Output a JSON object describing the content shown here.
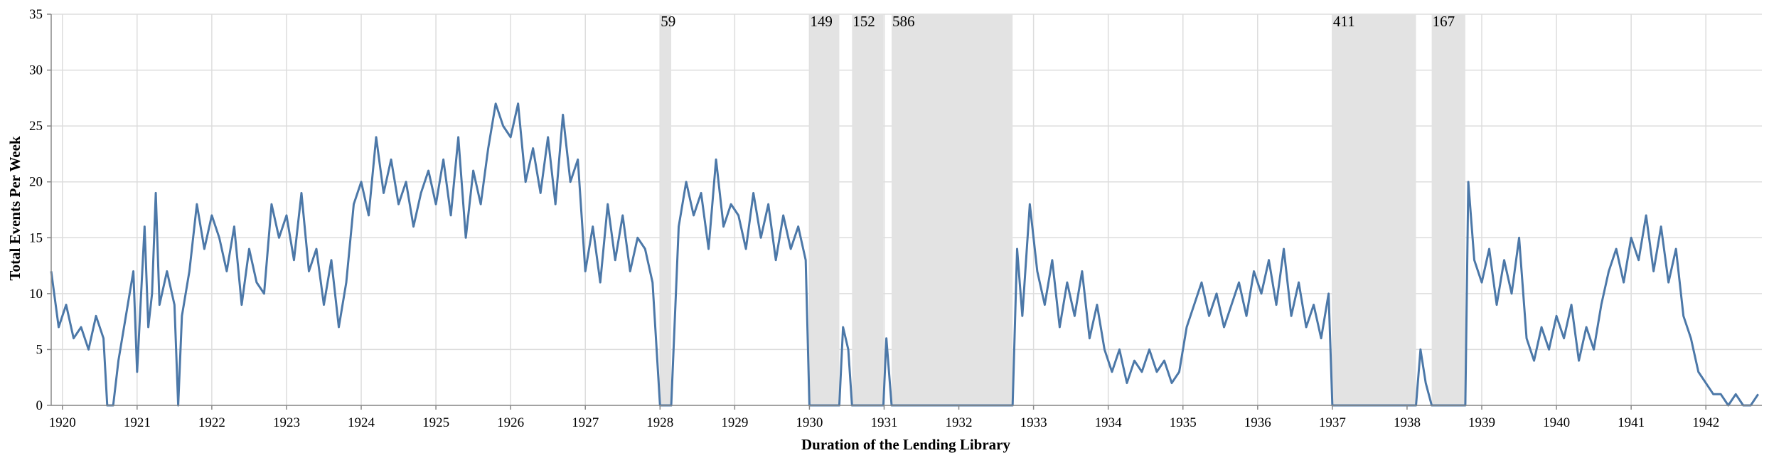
{
  "chart_data": {
    "type": "line",
    "title": "",
    "xlabel": "Duration of the Lending Library",
    "ylabel": "Total Events Per Week",
    "xlim": [
      1919.85,
      1942.75
    ],
    "ylim": [
      0,
      35
    ],
    "x_ticks": [
      1920,
      1921,
      1922,
      1923,
      1924,
      1925,
      1926,
      1927,
      1928,
      1929,
      1930,
      1931,
      1932,
      1933,
      1934,
      1935,
      1936,
      1937,
      1938,
      1939,
      1940,
      1941,
      1942
    ],
    "y_ticks": [
      0,
      5,
      10,
      15,
      20,
      25,
      30,
      35
    ],
    "grid": true,
    "line_color": "#4c78a8",
    "gaps": [
      {
        "start": 1928.0,
        "end": 1928.15,
        "label": "59"
      },
      {
        "start": 1930.0,
        "end": 1930.4,
        "label": "149"
      },
      {
        "start": 1930.57,
        "end": 1930.99,
        "label": "152"
      },
      {
        "start": 1931.1,
        "end": 1932.72,
        "label": "586"
      },
      {
        "start": 1937.0,
        "end": 1938.12,
        "label": "411"
      },
      {
        "start": 1938.33,
        "end": 1938.78,
        "label": "167"
      }
    ],
    "series": [
      {
        "values": [
          [
            1919.85,
            12
          ],
          [
            1919.95,
            7
          ],
          [
            1920.05,
            9
          ],
          [
            1920.15,
            6
          ],
          [
            1920.25,
            7
          ],
          [
            1920.35,
            5
          ],
          [
            1920.45,
            8
          ],
          [
            1920.55,
            6
          ],
          [
            1920.6,
            0
          ],
          [
            1920.68,
            0
          ],
          [
            1920.75,
            4
          ],
          [
            1920.85,
            8
          ],
          [
            1920.95,
            12
          ],
          [
            1921.0,
            3
          ],
          [
            1921.1,
            16
          ],
          [
            1921.15,
            7
          ],
          [
            1921.2,
            10
          ],
          [
            1921.25,
            19
          ],
          [
            1921.3,
            9
          ],
          [
            1921.4,
            12
          ],
          [
            1921.5,
            9
          ],
          [
            1921.55,
            0
          ],
          [
            1921.6,
            8
          ],
          [
            1921.7,
            12
          ],
          [
            1921.8,
            18
          ],
          [
            1921.9,
            14
          ],
          [
            1922.0,
            17
          ],
          [
            1922.1,
            15
          ],
          [
            1922.2,
            12
          ],
          [
            1922.3,
            16
          ],
          [
            1922.4,
            9
          ],
          [
            1922.5,
            14
          ],
          [
            1922.6,
            11
          ],
          [
            1922.7,
            10
          ],
          [
            1922.8,
            18
          ],
          [
            1922.9,
            15
          ],
          [
            1923.0,
            17
          ],
          [
            1923.1,
            13
          ],
          [
            1923.2,
            19
          ],
          [
            1923.3,
            12
          ],
          [
            1923.4,
            14
          ],
          [
            1923.5,
            9
          ],
          [
            1923.6,
            13
          ],
          [
            1923.7,
            7
          ],
          [
            1923.8,
            11
          ],
          [
            1923.9,
            18
          ],
          [
            1924.0,
            20
          ],
          [
            1924.1,
            17
          ],
          [
            1924.2,
            24
          ],
          [
            1924.3,
            19
          ],
          [
            1924.4,
            22
          ],
          [
            1924.5,
            18
          ],
          [
            1924.6,
            20
          ],
          [
            1924.7,
            16
          ],
          [
            1924.8,
            19
          ],
          [
            1924.9,
            21
          ],
          [
            1925.0,
            18
          ],
          [
            1925.1,
            22
          ],
          [
            1925.2,
            17
          ],
          [
            1925.3,
            24
          ],
          [
            1925.4,
            15
          ],
          [
            1925.5,
            21
          ],
          [
            1925.6,
            18
          ],
          [
            1925.7,
            23
          ],
          [
            1925.8,
            27
          ],
          [
            1925.9,
            25
          ],
          [
            1926.0,
            24
          ],
          [
            1926.1,
            27
          ],
          [
            1926.2,
            20
          ],
          [
            1926.3,
            23
          ],
          [
            1926.4,
            19
          ],
          [
            1926.5,
            24
          ],
          [
            1926.6,
            18
          ],
          [
            1926.7,
            26
          ],
          [
            1926.8,
            20
          ],
          [
            1926.9,
            22
          ],
          [
            1927.0,
            12
          ],
          [
            1927.1,
            16
          ],
          [
            1927.2,
            11
          ],
          [
            1927.3,
            18
          ],
          [
            1927.4,
            13
          ],
          [
            1927.5,
            17
          ],
          [
            1927.6,
            12
          ],
          [
            1927.7,
            15
          ],
          [
            1927.8,
            14
          ],
          [
            1927.9,
            11
          ],
          [
            1928.0,
            0
          ],
          [
            1928.15,
            0
          ],
          [
            1928.25,
            16
          ],
          [
            1928.35,
            20
          ],
          [
            1928.45,
            17
          ],
          [
            1928.55,
            19
          ],
          [
            1928.65,
            14
          ],
          [
            1928.75,
            22
          ],
          [
            1928.85,
            16
          ],
          [
            1928.95,
            18
          ],
          [
            1929.05,
            17
          ],
          [
            1929.15,
            14
          ],
          [
            1929.25,
            19
          ],
          [
            1929.35,
            15
          ],
          [
            1929.45,
            18
          ],
          [
            1929.55,
            13
          ],
          [
            1929.65,
            17
          ],
          [
            1929.75,
            14
          ],
          [
            1929.85,
            16
          ],
          [
            1929.95,
            13
          ],
          [
            1930.0,
            0
          ],
          [
            1930.4,
            0
          ],
          [
            1930.45,
            7
          ],
          [
            1930.52,
            5
          ],
          [
            1930.57,
            0
          ],
          [
            1930.99,
            0
          ],
          [
            1931.03,
            6
          ],
          [
            1931.1,
            0
          ],
          [
            1932.72,
            0
          ],
          [
            1932.78,
            14
          ],
          [
            1932.85,
            8
          ],
          [
            1932.95,
            18
          ],
          [
            1933.05,
            12
          ],
          [
            1933.15,
            9
          ],
          [
            1933.25,
            13
          ],
          [
            1933.35,
            7
          ],
          [
            1933.45,
            11
          ],
          [
            1933.55,
            8
          ],
          [
            1933.65,
            12
          ],
          [
            1933.75,
            6
          ],
          [
            1933.85,
            9
          ],
          [
            1933.95,
            5
          ],
          [
            1934.05,
            3
          ],
          [
            1934.15,
            5
          ],
          [
            1934.25,
            2
          ],
          [
            1934.35,
            4
          ],
          [
            1934.45,
            3
          ],
          [
            1934.55,
            5
          ],
          [
            1934.65,
            3
          ],
          [
            1934.75,
            4
          ],
          [
            1934.85,
            2
          ],
          [
            1934.95,
            3
          ],
          [
            1935.05,
            7
          ],
          [
            1935.15,
            9
          ],
          [
            1935.25,
            11
          ],
          [
            1935.35,
            8
          ],
          [
            1935.45,
            10
          ],
          [
            1935.55,
            7
          ],
          [
            1935.65,
            9
          ],
          [
            1935.75,
            11
          ],
          [
            1935.85,
            8
          ],
          [
            1935.95,
            12
          ],
          [
            1936.05,
            10
          ],
          [
            1936.15,
            13
          ],
          [
            1936.25,
            9
          ],
          [
            1936.35,
            14
          ],
          [
            1936.45,
            8
          ],
          [
            1936.55,
            11
          ],
          [
            1936.65,
            7
          ],
          [
            1936.75,
            9
          ],
          [
            1936.85,
            6
          ],
          [
            1936.95,
            10
          ],
          [
            1937.0,
            0
          ],
          [
            1938.12,
            0
          ],
          [
            1938.18,
            5
          ],
          [
            1938.25,
            2
          ],
          [
            1938.33,
            0
          ],
          [
            1938.78,
            0
          ],
          [
            1938.82,
            20
          ],
          [
            1938.9,
            13
          ],
          [
            1939.0,
            11
          ],
          [
            1939.1,
            14
          ],
          [
            1939.2,
            9
          ],
          [
            1939.3,
            13
          ],
          [
            1939.4,
            10
          ],
          [
            1939.5,
            15
          ],
          [
            1939.6,
            6
          ],
          [
            1939.7,
            4
          ],
          [
            1939.8,
            7
          ],
          [
            1939.9,
            5
          ],
          [
            1940.0,
            8
          ],
          [
            1940.1,
            6
          ],
          [
            1940.2,
            9
          ],
          [
            1940.3,
            4
          ],
          [
            1940.4,
            7
          ],
          [
            1940.5,
            5
          ],
          [
            1940.6,
            9
          ],
          [
            1940.7,
            12
          ],
          [
            1940.8,
            14
          ],
          [
            1940.9,
            11
          ],
          [
            1941.0,
            15
          ],
          [
            1941.1,
            13
          ],
          [
            1941.2,
            17
          ],
          [
            1941.3,
            12
          ],
          [
            1941.4,
            16
          ],
          [
            1941.5,
            11
          ],
          [
            1941.6,
            14
          ],
          [
            1941.7,
            8
          ],
          [
            1941.8,
            6
          ],
          [
            1941.9,
            3
          ],
          [
            1942.0,
            2
          ],
          [
            1942.1,
            1
          ],
          [
            1942.2,
            1
          ],
          [
            1942.3,
            0
          ],
          [
            1942.4,
            1
          ],
          [
            1942.5,
            0
          ],
          [
            1942.6,
            0
          ],
          [
            1942.7,
            1
          ]
        ]
      }
    ]
  }
}
